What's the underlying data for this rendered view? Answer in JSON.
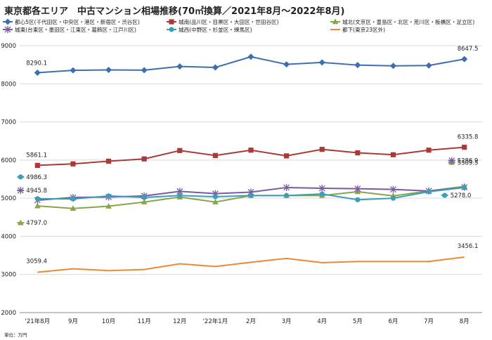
{
  "title": "東京都各エリア　中古マンション相場推移(70㎡換算／2021年8月～2022年8月)",
  "unit_note": "単位：万円",
  "colors": {
    "center": "#3d6fad",
    "south": "#a83a37",
    "north": "#86a649",
    "east": "#7a5aa0",
    "west": "#3c9fb8",
    "suburb": "#e98b36",
    "grid": "#d9d9d9",
    "axis": "#888888"
  },
  "chart_data": {
    "type": "line",
    "categories": [
      "'21年8月",
      "9月",
      "10月",
      "11月",
      "12月",
      "'22年1月",
      "2月",
      "3月",
      "4月",
      "5月",
      "6月",
      "7月",
      "8月"
    ],
    "ylim": [
      2000,
      9000
    ],
    "yticks": [
      2000,
      3000,
      4000,
      5000,
      6000,
      7000,
      8000,
      9000
    ],
    "grid": "horizontal",
    "legend_position": "top",
    "series": [
      {
        "name": "都心5区(千代田区・中央区・港区・新宿区・渋谷区)",
        "color_key": "center",
        "marker": "diamond",
        "values": [
          8290.1,
          8352,
          8365,
          8357,
          8455,
          8430,
          8710,
          8510,
          8560,
          8490,
          8470,
          8480,
          8647.5
        ],
        "labels": [
          {
            "index": 0,
            "text": "8290.1"
          },
          {
            "index": 12,
            "text": "8647.5"
          }
        ]
      },
      {
        "name": "城南(品川区・目黒区・大田区・世田谷区)",
        "color_key": "south",
        "marker": "square",
        "values": [
          5861.1,
          5900,
          5970,
          6030,
          6250,
          6120,
          6260,
          6110,
          6280,
          6190,
          6140,
          6260,
          6335.8
        ],
        "labels": [
          {
            "index": 0,
            "text": "5861.1"
          },
          {
            "index": 12,
            "text": "6335.8"
          }
        ]
      },
      {
        "name": "城北(文京区・豊島区・北区・荒川区・板橋区・足立区)",
        "color_key": "north",
        "marker": "triangle",
        "values": [
          4797.0,
          4730,
          4790,
          4900,
          5030,
          4900,
          5070,
          5070,
          5070,
          5170,
          5060,
          5190,
          5309.5
        ],
        "labels": [
          {
            "index": 0,
            "text": "4797.0"
          },
          {
            "index": 12,
            "text": "5309.5"
          }
        ]
      },
      {
        "name": "城東(台東区・墨田区・江東区・葛飾区・江戸川区)",
        "color_key": "east",
        "marker": "asterisk",
        "values": [
          4945.8,
          5020,
          5030,
          5060,
          5180,
          5120,
          5160,
          5280,
          5260,
          5250,
          5230,
          5190,
          5286.9
        ],
        "labels": [
          {
            "index": 0,
            "text": "4945.8"
          },
          {
            "index": 12,
            "text": "5286.9"
          }
        ]
      },
      {
        "name": "城西(中野区・杉並区・練馬区)",
        "color_key": "west",
        "marker": "circle",
        "values": [
          4986.3,
          4980,
          5060,
          5020,
          5070,
          5040,
          5070,
          5070,
          5110,
          4960,
          5000,
          5170,
          5278.0
        ],
        "labels": [
          {
            "index": 0,
            "text": "4986.3"
          },
          {
            "index": 12,
            "text": "5278.0"
          }
        ]
      },
      {
        "name": "都下(東京23区外)",
        "color_key": "suburb",
        "marker": "none",
        "values": [
          3059.4,
          3150,
          3100,
          3130,
          3280,
          3210,
          3320,
          3420,
          3310,
          3340,
          3340,
          3340,
          3456.1
        ],
        "labels": [
          {
            "index": 0,
            "text": "3059.4"
          },
          {
            "index": 12,
            "text": "3456.1"
          }
        ]
      }
    ]
  }
}
